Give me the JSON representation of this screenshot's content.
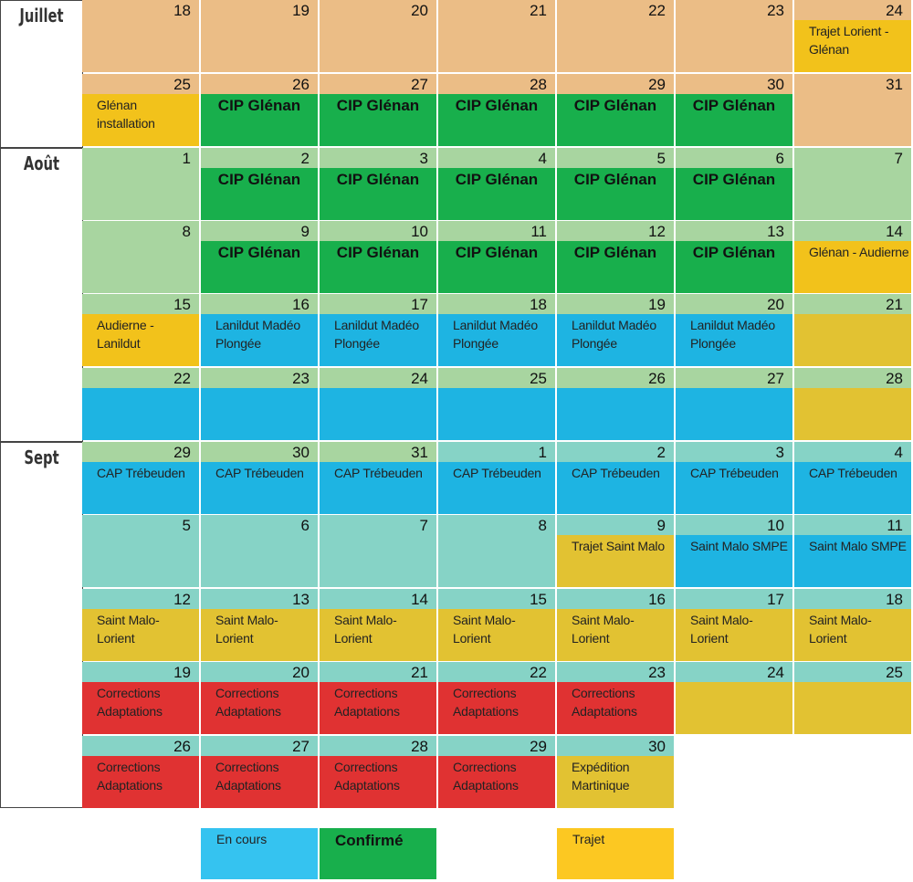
{
  "colors": {
    "juillet": "#ebbd86",
    "aout": "#a8d5a0",
    "sept": "#86d3c6",
    "en_cours": "#1eb4e2",
    "confirme": "#18af4c",
    "trajet": "#f2c21b",
    "trajet_muted": "#e2c232",
    "corrections": "#e03232",
    "legend_en_cours": "#35c3f0",
    "legend_trajet": "#fcc822"
  },
  "months": [
    {
      "label": "Juillet",
      "color_key": "juillet"
    },
    {
      "label": "Août",
      "color_key": "aout"
    },
    {
      "label": "Sept",
      "color_key": "sept"
    }
  ],
  "weeks": [
    {
      "month": 0,
      "cells": [
        {
          "day": "18",
          "text": "",
          "fill": ""
        },
        {
          "day": "19",
          "text": "",
          "fill": ""
        },
        {
          "day": "20",
          "text": "",
          "fill": ""
        },
        {
          "day": "21",
          "text": "",
          "fill": ""
        },
        {
          "day": "22",
          "text": "",
          "fill": ""
        },
        {
          "day": "23",
          "text": "",
          "fill": ""
        },
        {
          "day": "24",
          "text": "Trajet Lorient - Glénan",
          "fill": "trajet"
        }
      ]
    },
    {
      "month": 0,
      "cells": [
        {
          "day": "25",
          "text": "Glénan installation",
          "fill": "trajet"
        },
        {
          "day": "26",
          "text": "CIP Glénan",
          "fill": "confirme"
        },
        {
          "day": "27",
          "text": "CIP Glénan",
          "fill": "confirme"
        },
        {
          "day": "28",
          "text": "CIP Glénan",
          "fill": "confirme"
        },
        {
          "day": "29",
          "text": "CIP Glénan",
          "fill": "confirme"
        },
        {
          "day": "30",
          "text": "CIP Glénan",
          "fill": "confirme"
        },
        {
          "day": "31",
          "text": "",
          "fill": ""
        }
      ]
    },
    {
      "month": 1,
      "cells": [
        {
          "day": "1",
          "text": "",
          "fill": ""
        },
        {
          "day": "2",
          "text": "CIP Glénan",
          "fill": "confirme"
        },
        {
          "day": "3",
          "text": "CIP Glénan",
          "fill": "confirme"
        },
        {
          "day": "4",
          "text": "CIP Glénan",
          "fill": "confirme"
        },
        {
          "day": "5",
          "text": "CIP Glénan",
          "fill": "confirme"
        },
        {
          "day": "6",
          "text": "CIP Glénan",
          "fill": "confirme"
        },
        {
          "day": "7",
          "text": "",
          "fill": ""
        }
      ]
    },
    {
      "month": 1,
      "cells": [
        {
          "day": "8",
          "text": "",
          "fill": ""
        },
        {
          "day": "9",
          "text": "CIP Glénan",
          "fill": "confirme"
        },
        {
          "day": "10",
          "text": "CIP Glénan",
          "fill": "confirme"
        },
        {
          "day": "11",
          "text": "CIP Glénan",
          "fill": "confirme"
        },
        {
          "day": "12",
          "text": "CIP Glénan",
          "fill": "confirme"
        },
        {
          "day": "13",
          "text": "CIP Glénan",
          "fill": "confirme"
        },
        {
          "day": "14",
          "text": "Glénan - Audierne",
          "fill": "trajet"
        }
      ]
    },
    {
      "month": 1,
      "cells": [
        {
          "day": "15",
          "text": "Audierne - Lanildut",
          "fill": "trajet"
        },
        {
          "day": "16",
          "text": "Lanildut Madéo Plongée",
          "fill": "en_cours"
        },
        {
          "day": "17",
          "text": "Lanildut Madéo Plongée",
          "fill": "en_cours"
        },
        {
          "day": "18",
          "text": "Lanildut Madéo Plongée",
          "fill": "en_cours"
        },
        {
          "day": "19",
          "text": "Lanildut Madéo Plongée",
          "fill": "en_cours"
        },
        {
          "day": "20",
          "text": "Lanildut Madéo Plongée",
          "fill": "en_cours"
        },
        {
          "day": "21",
          "text": "",
          "fill": "trajet_muted"
        }
      ]
    },
    {
      "month": 1,
      "cells": [
        {
          "day": "22",
          "text": "",
          "fill": "en_cours"
        },
        {
          "day": "23",
          "text": "",
          "fill": "en_cours"
        },
        {
          "day": "24",
          "text": "",
          "fill": "en_cours"
        },
        {
          "day": "25",
          "text": "",
          "fill": "en_cours"
        },
        {
          "day": "26",
          "text": "",
          "fill": "en_cours"
        },
        {
          "day": "27",
          "text": "",
          "fill": "en_cours"
        },
        {
          "day": "28",
          "text": "",
          "fill": "trajet_muted"
        }
      ]
    },
    {
      "month": 2,
      "cells": [
        {
          "day": "29",
          "text": "CAP Trébeuden",
          "fill": "en_cours",
          "band": "aout"
        },
        {
          "day": "30",
          "text": "CAP Trébeuden",
          "fill": "en_cours",
          "band": "aout"
        },
        {
          "day": "31",
          "text": "CAP Trébeuden",
          "fill": "en_cours",
          "band": "aout"
        },
        {
          "day": "1",
          "text": "CAP Trébeuden",
          "fill": "en_cours"
        },
        {
          "day": "2",
          "text": "CAP Trébeuden",
          "fill": "en_cours"
        },
        {
          "day": "3",
          "text": "CAP Trébeuden",
          "fill": "en_cours"
        },
        {
          "day": "4",
          "text": "CAP Trébeuden",
          "fill": "en_cours"
        }
      ]
    },
    {
      "month": 2,
      "cells": [
        {
          "day": "5",
          "text": "",
          "fill": ""
        },
        {
          "day": "6",
          "text": "",
          "fill": ""
        },
        {
          "day": "7",
          "text": "",
          "fill": ""
        },
        {
          "day": "8",
          "text": "",
          "fill": ""
        },
        {
          "day": "9",
          "text": "Trajet Saint Malo",
          "fill": "trajet_muted"
        },
        {
          "day": "10",
          "text": "Saint Malo SMPE",
          "fill": "en_cours"
        },
        {
          "day": "11",
          "text": "Saint Malo SMPE",
          "fill": "en_cours"
        }
      ]
    },
    {
      "month": 2,
      "cells": [
        {
          "day": "12",
          "text": "Saint Malo- Lorient",
          "fill": "trajet_muted"
        },
        {
          "day": "13",
          "text": "Saint Malo- Lorient",
          "fill": "trajet_muted"
        },
        {
          "day": "14",
          "text": "Saint Malo- Lorient",
          "fill": "trajet_muted"
        },
        {
          "day": "15",
          "text": "Saint Malo- Lorient",
          "fill": "trajet_muted"
        },
        {
          "day": "16",
          "text": "Saint Malo- Lorient",
          "fill": "trajet_muted"
        },
        {
          "day": "17",
          "text": "Saint Malo- Lorient",
          "fill": "trajet_muted"
        },
        {
          "day": "18",
          "text": "Saint Malo- Lorient",
          "fill": "trajet_muted"
        }
      ]
    },
    {
      "month": 2,
      "cells": [
        {
          "day": "19",
          "text": "Corrections Adaptations",
          "fill": "corrections"
        },
        {
          "day": "20",
          "text": "Corrections Adaptations",
          "fill": "corrections"
        },
        {
          "day": "21",
          "text": "Corrections Adaptations",
          "fill": "corrections"
        },
        {
          "day": "22",
          "text": "Corrections Adaptations",
          "fill": "corrections"
        },
        {
          "day": "23",
          "text": "Corrections Adaptations",
          "fill": "corrections"
        },
        {
          "day": "24",
          "text": "",
          "fill": "trajet_muted"
        },
        {
          "day": "25",
          "text": "",
          "fill": "trajet_muted"
        }
      ]
    },
    {
      "month": 2,
      "cells": [
        {
          "day": "26",
          "text": "Corrections Adaptations",
          "fill": "corrections"
        },
        {
          "day": "27",
          "text": "Corrections Adaptations",
          "fill": "corrections"
        },
        {
          "day": "28",
          "text": "Corrections Adaptations",
          "fill": "corrections"
        },
        {
          "day": "29",
          "text": "Corrections Adaptations",
          "fill": "corrections"
        },
        {
          "day": "30",
          "text": "Expédition Martinique",
          "fill": "trajet_muted"
        }
      ]
    }
  ],
  "legend": [
    {
      "label": "En cours",
      "color_key": "legend_en_cours",
      "big": false
    },
    {
      "label": "Confirmé",
      "color_key": "confirme",
      "big": true
    },
    {
      "label": "",
      "color_key": "",
      "big": false
    },
    {
      "label": "Trajet",
      "color_key": "legend_trajet",
      "big": false
    }
  ]
}
